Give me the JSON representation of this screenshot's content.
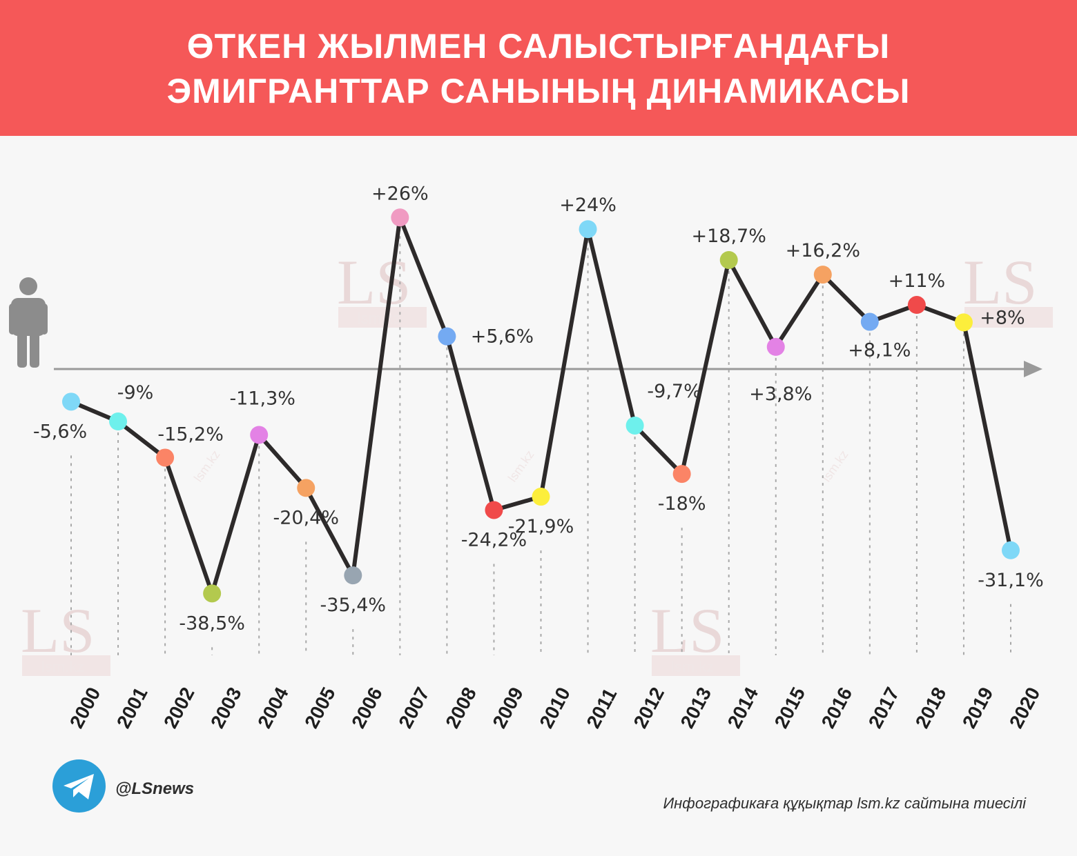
{
  "header": {
    "title_line1": "ӨТКЕН ЖЫЛМЕН САЛЫСТЫРҒАНДАҒЫ",
    "title_line2": "ЭМИГРАНТТАР САНЫНЫҢ ДИНАМИКАСЫ",
    "background": "#f55858"
  },
  "chart_data": {
    "type": "line",
    "title": "ӨТКЕН ЖЫЛМЕН САЛЫСТЫРҒАНДАҒЫ ЭМИГРАНТТАР САНЫНЫҢ ДИНАМИКАСЫ",
    "categories": [
      "2000",
      "2001",
      "2002",
      "2003",
      "2004",
      "2005",
      "2006",
      "2007",
      "2008",
      "2009",
      "2010",
      "2011",
      "2012",
      "2013",
      "2014",
      "2015",
      "2016",
      "2017",
      "2018",
      "2019",
      "2020"
    ],
    "values": [
      -5.6,
      -9,
      -15.2,
      -38.5,
      -11.3,
      -20.4,
      -35.4,
      26,
      5.6,
      -24.2,
      -21.9,
      24,
      -9.7,
      -18,
      18.7,
      3.8,
      16.2,
      8.1,
      11,
      8,
      -31.1
    ],
    "value_labels": [
      "-5,6%",
      "-9%",
      "-15,2%",
      "-38,5%",
      "-11,3%",
      "-20,4%",
      "-35,4%",
      "+26%",
      "+5,6%",
      "-24,2%",
      "-21,9%",
      "+24%",
      "-9,7%",
      "-18%",
      "+18,7%",
      "+3,8%",
      "+16,2%",
      "+8,1%",
      "+11%",
      "+8%",
      "-31,1%"
    ],
    "point_colors": [
      "#7fd8f7",
      "#6ef0ec",
      "#fb8466",
      "#b3c94e",
      "#e382e5",
      "#f5a262",
      "#98a5b1",
      "#f09bc2",
      "#74aaf2",
      "#f04a4a",
      "#fcee3c",
      "#7fd8f7",
      "#6ef0ec",
      "#fb8466",
      "#b3c94e",
      "#e382e5",
      "#f5a262",
      "#74aaf2",
      "#f04a4a",
      "#fcee3c",
      "#7fd8f7"
    ],
    "line_color": "#2d2a2a",
    "axis_color": "#9a9a9a",
    "grid": false
  },
  "watermark": {
    "logo": "LS",
    "site": "lsm.kz"
  },
  "footer": {
    "telegram_icon": "telegram-icon",
    "handle": "@LSnews",
    "credit": "Инфографикаға құқықтар lsm.kz сайтына тиесілі"
  }
}
